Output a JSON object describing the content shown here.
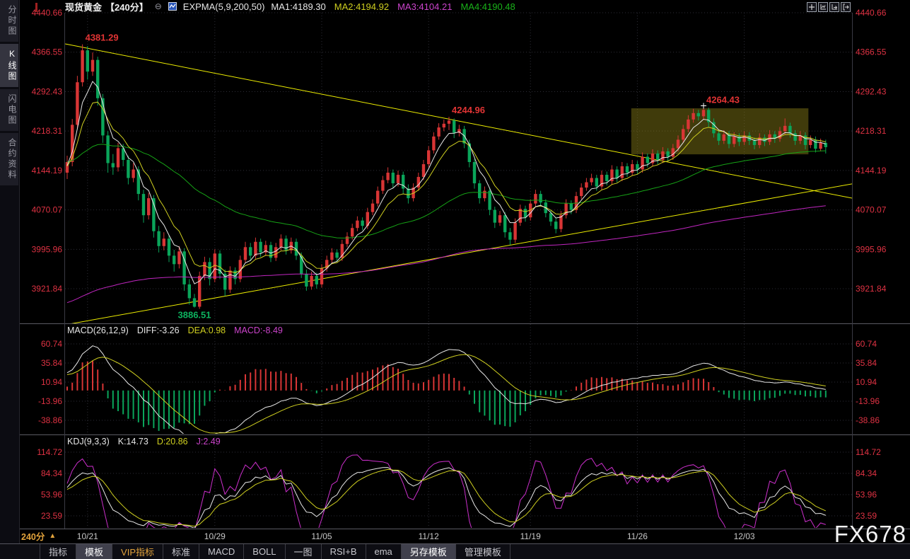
{
  "app": {
    "watermark": "FX678"
  },
  "sidebar": {
    "items": [
      {
        "label": "分时图",
        "active": false
      },
      {
        "label": "K线图",
        "active": true
      },
      {
        "label": "闪电图",
        "active": false
      },
      {
        "label": "合约资料",
        "active": false
      }
    ]
  },
  "header": {
    "title": "现货黄金",
    "period": "【240分】",
    "collapse_glyph": "⊖",
    "indicator": "EXPMA(5,9,200,50)",
    "ma_values": [
      {
        "label": "MA1:4189.30",
        "color": "#e8e8e8"
      },
      {
        "label": "MA2:4194.92",
        "color": "#cfcf20"
      },
      {
        "label": "MA3:4104.21",
        "color": "#cc44cc"
      },
      {
        "label": "MA4:4190.48",
        "color": "#19b219"
      }
    ],
    "window_icons": [
      "pan-icon",
      "axis-chart-icon",
      "axis-play-icon",
      "exit-icon"
    ]
  },
  "macd_panel": {
    "title": "MACD(26,12,9)",
    "diff_label": "DIFF:-3.26",
    "dea_label": "DEA:0.98",
    "macd_label": "MACD:-8.49",
    "diff_color": "#e8e8e8",
    "dea_color": "#cfcf20",
    "macd_color": "#cc44cc"
  },
  "kdj_panel": {
    "title": "KDJ(9,3,3)",
    "k_label": "K:14.73",
    "d_label": "D:20.86",
    "j_label": "J:2.49",
    "k_color": "#e8e8e8",
    "d_color": "#cfcf20",
    "j_color": "#cc44cc"
  },
  "footer": {
    "period_label": "240分",
    "period_arrow": "▲",
    "toolbar": [
      {
        "label": "指标",
        "style": "normal"
      },
      {
        "label": "模板",
        "style": "active"
      },
      {
        "label": "VIP指标",
        "style": "vip"
      },
      {
        "label": "标准",
        "style": "normal"
      },
      {
        "label": "MACD",
        "style": "normal"
      },
      {
        "label": "BOLL",
        "style": "normal"
      },
      {
        "label": "一图",
        "style": "normal"
      },
      {
        "label": "RSI+B",
        "style": "normal"
      },
      {
        "label": "ema",
        "style": "normal"
      },
      {
        "label": "另存模板",
        "style": "active"
      },
      {
        "label": "管理模板",
        "style": "normal"
      }
    ]
  },
  "chart_data": {
    "type": "candlestick",
    "title": "现货黄金 240分",
    "y_axis_main": [
      "4440.66",
      "4366.55",
      "4292.43",
      "4218.31",
      "4144.19",
      "4070.07",
      "3995.96",
      "3921.84"
    ],
    "y_axis_main_values": [
      4440.66,
      4366.55,
      4292.43,
      4218.31,
      4144.19,
      4070.07,
      3995.96,
      3921.84
    ],
    "y_axis_macd": [
      "60.74",
      "35.84",
      "10.94",
      "-13.96",
      "-38.86"
    ],
    "y_axis_macd_values": [
      60.74,
      35.84,
      10.94,
      -13.96,
      -38.86
    ],
    "y_axis_kdj": [
      "114.72",
      "84.34",
      "53.96",
      "23.59"
    ],
    "y_axis_kdj_values": [
      114.72,
      84.34,
      53.96,
      23.59
    ],
    "x_labels": [
      "10/21",
      "10/29",
      "11/05",
      "11/12",
      "11/19",
      "11/26",
      "12/03"
    ],
    "x_label_indices": [
      4,
      29,
      50,
      71,
      91,
      112,
      133
    ],
    "ema_periods": [
      5,
      9,
      50,
      200
    ],
    "ema_seeds": [
      4150,
      4150,
      4160,
      3893
    ],
    "macd_params": [
      26,
      12,
      9
    ],
    "kdj_params": [
      9,
      3,
      3
    ],
    "annotations": [
      {
        "text": "4381.29",
        "candle": 3,
        "price": 4381.3,
        "position": "above",
        "color": "#e13434"
      },
      {
        "text": "3886.51",
        "candle": 25,
        "price": 3886.5,
        "position": "below",
        "color": "#0db35f"
      },
      {
        "text": "4244.96",
        "candle": 75,
        "price": 4245.0,
        "position": "above",
        "color": "#e13434"
      },
      {
        "text": "4264.43",
        "candle": 125,
        "price": 4264.4,
        "position": "above",
        "color": "#e13434",
        "marker": "cross"
      }
    ],
    "trend_lines": [
      {
        "i1": -0.4,
        "p1": 4382.1,
        "i2": 155.6,
        "p2": 4089.5
      },
      {
        "i1": -0.4,
        "p1": 3854.0,
        "i2": 155.6,
        "p2": 4121.4
      }
    ],
    "highlight_box": {
      "i1": 110.8,
      "p1": 4261.0,
      "i2": 145.6,
      "p2": 4174.5
    },
    "colors": {
      "up": "#d83535",
      "down": "#0aa55a",
      "ema5": "#e8e8e8",
      "ema9": "#cfcf20",
      "ema50": "#16a216",
      "ema200": "#c026c0",
      "trend": "#eded00",
      "grid": "#2d2d36",
      "axis_text": "#df3243",
      "date_text": "#c8c8c8",
      "divider": "#5a5a62",
      "box_fill": "#8f8218",
      "diff": "#e8e8e8",
      "dea": "#cfcf20",
      "macd_bar_up": "#d83535",
      "macd_bar_dn": "#0aa55a",
      "macd_line": "#cc2fcc",
      "k": "#e8e8e8",
      "d": "#cfcf20",
      "j": "#cc2fcc"
    },
    "candles": [
      [
        4140,
        4172,
        4128,
        4160
      ],
      [
        4160,
        4241,
        4152,
        4230
      ],
      [
        4230,
        4322,
        4222,
        4310
      ],
      [
        4310,
        4381.3,
        4302,
        4370
      ],
      [
        4370,
        4378,
        4315,
        4330
      ],
      [
        4330,
        4366,
        4322,
        4352
      ],
      [
        4352,
        4358,
        4266,
        4280
      ],
      [
        4280,
        4288,
        4196,
        4210
      ],
      [
        4210,
        4218,
        4140,
        4158
      ],
      [
        4158,
        4175,
        4136,
        4150
      ],
      [
        4150,
        4196,
        4142,
        4186
      ],
      [
        4186,
        4194,
        4152,
        4164
      ],
      [
        4164,
        4172,
        4118,
        4130
      ],
      [
        4130,
        4158,
        4122,
        4146
      ],
      [
        4146,
        4152,
        4088,
        4100
      ],
      [
        4100,
        4108,
        4046,
        4060
      ],
      [
        4060,
        4102,
        4052,
        4092
      ],
      [
        4092,
        4098,
        4018,
        4030
      ],
      [
        4030,
        4040,
        3990,
        4002
      ],
      [
        4002,
        4028,
        3994,
        4016
      ],
      [
        4016,
        4022,
        3972,
        3984
      ],
      [
        3984,
        3995,
        3954,
        3968
      ],
      [
        3968,
        4002,
        3960,
        3992
      ],
      [
        3992,
        3998,
        3918,
        3930
      ],
      [
        3930,
        3940,
        3892,
        3904
      ],
      [
        3904,
        3912,
        3886.5,
        3888
      ],
      [
        3888,
        3954,
        3884,
        3946
      ],
      [
        3946,
        3982,
        3938,
        3972
      ],
      [
        3972,
        3980,
        3928,
        3940
      ],
      [
        3940,
        3996,
        3934,
        3988
      ],
      [
        3988,
        3994,
        3940,
        3950
      ],
      [
        3950,
        3958,
        3908,
        3920
      ],
      [
        3920,
        3964,
        3914,
        3956
      ],
      [
        3956,
        3962,
        3930,
        3940
      ],
      [
        3940,
        3984,
        3934,
        3976
      ],
      [
        3976,
        4010,
        3970,
        4000
      ],
      [
        4000,
        4008,
        3974,
        3984
      ],
      [
        3984,
        4018,
        3978,
        4010
      ],
      [
        4010,
        4016,
        3982,
        3990
      ],
      [
        3990,
        4012,
        3984,
        4004
      ],
      [
        4004,
        4010,
        3972,
        3980
      ],
      [
        3980,
        4008,
        3974,
        4000
      ],
      [
        4000,
        4024,
        3994,
        4016
      ],
      [
        4016,
        4022,
        3986,
        3994
      ],
      [
        3994,
        4018,
        3988,
        4010
      ],
      [
        4010,
        4016,
        3976,
        3984
      ],
      [
        3984,
        3990,
        3942,
        3950
      ],
      [
        3950,
        3958,
        3918,
        3926
      ],
      [
        3926,
        3954,
        3920,
        3946
      ],
      [
        3946,
        3952,
        3922,
        3930
      ],
      [
        3930,
        3968,
        3924,
        3960
      ],
      [
        3960,
        3984,
        3954,
        3976
      ],
      [
        3976,
        3998,
        3970,
        3990
      ],
      [
        3990,
        3996,
        3972,
        3980
      ],
      [
        3980,
        4014,
        3974,
        4006
      ],
      [
        4006,
        4028,
        4000,
        4020
      ],
      [
        4020,
        4044,
        4014,
        4036
      ],
      [
        4036,
        4058,
        4030,
        4050
      ],
      [
        4050,
        4056,
        4032,
        4040
      ],
      [
        4040,
        4074,
        4034,
        4066
      ],
      [
        4066,
        4090,
        4060,
        4082
      ],
      [
        4082,
        4114,
        4076,
        4106
      ],
      [
        4106,
        4134,
        4100,
        4126
      ],
      [
        4126,
        4150,
        4120,
        4140
      ],
      [
        4140,
        4146,
        4112,
        4120
      ],
      [
        4120,
        4144,
        4114,
        4136
      ],
      [
        4136,
        4142,
        4100,
        4110
      ],
      [
        4110,
        4118,
        4082,
        4092
      ],
      [
        4092,
        4120,
        4086,
        4112
      ],
      [
        4112,
        4140,
        4106,
        4132
      ],
      [
        4132,
        4164,
        4126,
        4156
      ],
      [
        4156,
        4190,
        4150,
        4182
      ],
      [
        4182,
        4216,
        4176,
        4208
      ],
      [
        4208,
        4233,
        4202,
        4225
      ],
      [
        4225,
        4240,
        4218,
        4232
      ],
      [
        4232,
        4245,
        4220,
        4238
      ],
      [
        4238,
        4242,
        4205,
        4215
      ],
      [
        4215,
        4230,
        4208,
        4222
      ],
      [
        4222,
        4228,
        4186,
        4195
      ],
      [
        4195,
        4202,
        4150,
        4160
      ],
      [
        4160,
        4166,
        4110,
        4120
      ],
      [
        4120,
        4126,
        4082,
        4092
      ],
      [
        4092,
        4114,
        4086,
        4106
      ],
      [
        4106,
        4112,
        4060,
        4070
      ],
      [
        4070,
        4076,
        4036,
        4046
      ],
      [
        4046,
        4068,
        4040,
        4060
      ],
      [
        4060,
        4066,
        4018,
        4028
      ],
      [
        4028,
        4036,
        4004,
        4014
      ],
      [
        4014,
        4054,
        4008,
        4046
      ],
      [
        4046,
        4080,
        4040,
        4072
      ],
      [
        4072,
        4078,
        4048,
        4056
      ],
      [
        4056,
        4090,
        4050,
        4082
      ],
      [
        4082,
        4108,
        4076,
        4100
      ],
      [
        4100,
        4106,
        4076,
        4084
      ],
      [
        4084,
        4090,
        4056,
        4064
      ],
      [
        4064,
        4070,
        4040,
        4048
      ],
      [
        4048,
        4054,
        4026,
        4034
      ],
      [
        4034,
        4068,
        4028,
        4060
      ],
      [
        4060,
        4090,
        4054,
        4082
      ],
      [
        4082,
        4088,
        4062,
        4070
      ],
      [
        4070,
        4104,
        4064,
        4096
      ],
      [
        4096,
        4120,
        4090,
        4112
      ],
      [
        4112,
        4130,
        4106,
        4122
      ],
      [
        4122,
        4138,
        4116,
        4130
      ],
      [
        4130,
        4136,
        4106,
        4114
      ],
      [
        4114,
        4144,
        4108,
        4136
      ],
      [
        4136,
        4142,
        4116,
        4124
      ],
      [
        4124,
        4154,
        4118,
        4146
      ],
      [
        4146,
        4152,
        4122,
        4130
      ],
      [
        4130,
        4160,
        4124,
        4152
      ],
      [
        4152,
        4158,
        4132,
        4140
      ],
      [
        4140,
        4164,
        4134,
        4156
      ],
      [
        4156,
        4162,
        4138,
        4146
      ],
      [
        4146,
        4178,
        4140,
        4170
      ],
      [
        4170,
        4176,
        4150,
        4158
      ],
      [
        4158,
        4184,
        4152,
        4176
      ],
      [
        4176,
        4182,
        4156,
        4164
      ],
      [
        4164,
        4188,
        4158,
        4180
      ],
      [
        4180,
        4186,
        4162,
        4170
      ],
      [
        4170,
        4194,
        4164,
        4186
      ],
      [
        4186,
        4210,
        4180,
        4202
      ],
      [
        4202,
        4230,
        4196,
        4222
      ],
      [
        4222,
        4248,
        4216,
        4240
      ],
      [
        4240,
        4260,
        4234,
        4252
      ],
      [
        4252,
        4258,
        4238,
        4246
      ],
      [
        4246,
        4264.4,
        4240,
        4258
      ],
      [
        4258,
        4262,
        4226,
        4235
      ],
      [
        4235,
        4242,
        4206,
        4214
      ],
      [
        4214,
        4220,
        4192,
        4200
      ],
      [
        4200,
        4220,
        4194,
        4212
      ],
      [
        4212,
        4218,
        4186,
        4194
      ],
      [
        4194,
        4216,
        4188,
        4208
      ],
      [
        4208,
        4214,
        4190,
        4198
      ],
      [
        4198,
        4218,
        4192,
        4210
      ],
      [
        4210,
        4216,
        4192,
        4200
      ],
      [
        4200,
        4206,
        4184,
        4192
      ],
      [
        4192,
        4214,
        4186,
        4206
      ],
      [
        4206,
        4212,
        4190,
        4198
      ],
      [
        4198,
        4220,
        4192,
        4212
      ],
      [
        4212,
        4218,
        4196,
        4204
      ],
      [
        4204,
        4226,
        4198,
        4218
      ],
      [
        4218,
        4242,
        4212,
        4228
      ],
      [
        4228,
        4234,
        4206,
        4214
      ],
      [
        4214,
        4220,
        4192,
        4200
      ],
      [
        4200,
        4218,
        4194,
        4210
      ],
      [
        4210,
        4216,
        4184,
        4192
      ],
      [
        4192,
        4210,
        4186,
        4202
      ],
      [
        4202,
        4208,
        4178,
        4185
      ],
      [
        4185,
        4204,
        4180,
        4196
      ],
      [
        4196,
        4202,
        4176,
        4188
      ]
    ]
  }
}
